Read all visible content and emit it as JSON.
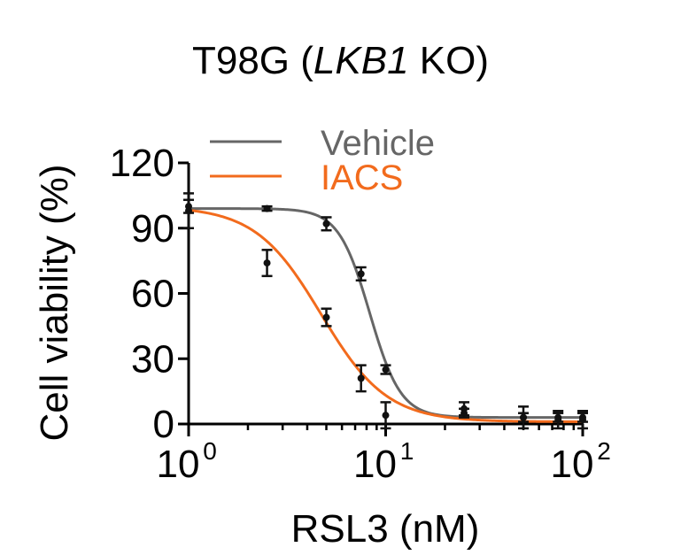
{
  "chart_data": {
    "type": "scatter",
    "title_prefix": "T98G (",
    "title_gene": "LKB1",
    "title_suffix": " KO)",
    "xlabel": "RSL3 (nM)",
    "ylabel": "Cell viability (%)",
    "x_scale": "log",
    "xlim": [
      1,
      100
    ],
    "ylim": [
      0,
      120
    ],
    "x_ticks": [
      {
        "value": 1,
        "base": "10",
        "exp": "0"
      },
      {
        "value": 10,
        "base": "10",
        "exp": "1"
      },
      {
        "value": 100,
        "base": "10",
        "exp": "2"
      }
    ],
    "y_ticks": [
      {
        "value": 0,
        "label": "0"
      },
      {
        "value": 30,
        "label": "30"
      },
      {
        "value": 60,
        "label": "60"
      },
      {
        "value": 90,
        "label": "90"
      },
      {
        "value": 120,
        "label": "120"
      }
    ],
    "legend_position": "top-left",
    "grid": false,
    "series": [
      {
        "name": "Vehicle",
        "color": "#666666",
        "points": [
          {
            "x": 1.0,
            "y": 100,
            "err": 3
          },
          {
            "x": 2.5,
            "y": 99,
            "err": 1
          },
          {
            "x": 5.0,
            "y": 92,
            "err": 3
          },
          {
            "x": 7.5,
            "y": 69,
            "err": 3
          },
          {
            "x": 10.0,
            "y": 25,
            "err": 2
          },
          {
            "x": 25.0,
            "y": 5,
            "err": 2
          },
          {
            "x": 50.0,
            "y": 3,
            "err": 2
          },
          {
            "x": 75.0,
            "y": 3,
            "err": 2
          },
          {
            "x": 100.0,
            "y": 3,
            "err": 2
          }
        ],
        "fit": {
          "top": 99,
          "bottom": 3,
          "ic50": 8.3,
          "hill": 5.5
        }
      },
      {
        "name": "IACS",
        "color": "#f26b1d",
        "points": [
          {
            "x": 1.0,
            "y": 98,
            "err": 8
          },
          {
            "x": 2.5,
            "y": 74,
            "err": 6
          },
          {
            "x": 5.0,
            "y": 49,
            "err": 4
          },
          {
            "x": 7.5,
            "y": 21,
            "err": 6
          },
          {
            "x": 10.0,
            "y": 4,
            "err": 6
          },
          {
            "x": 25.0,
            "y": 7,
            "err": 3
          },
          {
            "x": 50.0,
            "y": 3,
            "err": 5
          },
          {
            "x": 75.0,
            "y": 2,
            "err": 4
          },
          {
            "x": 100.0,
            "y": 2,
            "err": 4
          }
        ],
        "fit": {
          "top": 100,
          "bottom": 1,
          "ic50": 4.7,
          "hill": 2.6
        }
      }
    ]
  }
}
